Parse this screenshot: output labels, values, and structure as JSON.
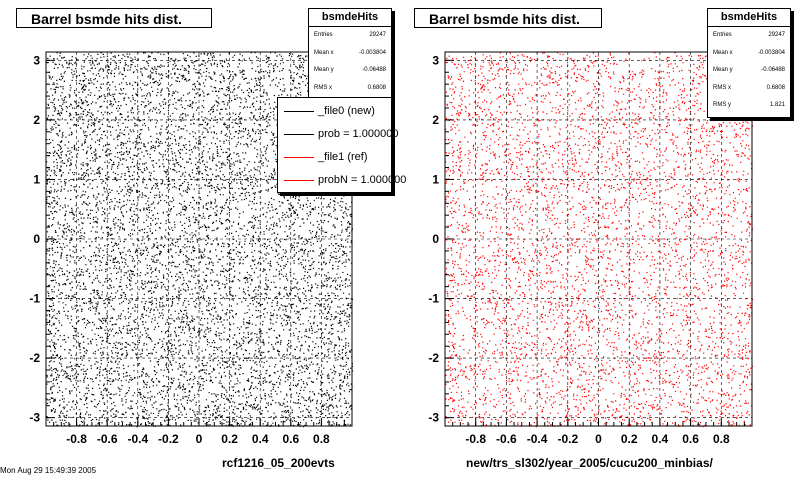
{
  "charts": [
    {
      "title": "Barrel bsmde hits dist.",
      "xlabel": "rcf1216_05_200evts",
      "marker_color": "#000000",
      "stats": {
        "name": "bsmdeHits",
        "rows": [
          {
            "label": "Entries",
            "value": "29247"
          },
          {
            "label": "Mean x",
            "value": "-0.003804"
          },
          {
            "label": "Mean y",
            "value": "-0.06488"
          },
          {
            "label": "RMS x",
            "value": "0.6808"
          }
        ]
      },
      "legend": [
        {
          "label": "_file0 (new)",
          "color": "#000000"
        },
        {
          "label": "prob = 1.000000",
          "color": "#000000"
        },
        {
          "label": "_file1 (ref)",
          "color": "#ff0000"
        },
        {
          "label": "probN = 1.000000",
          "color": "#ff0000"
        }
      ]
    },
    {
      "title": "Barrel bsmde hits dist.",
      "xlabel": "new/trs_sl302/year_2005/cucu200_minbias/",
      "marker_color": "#ff0000",
      "stats": {
        "name": "bsmdeHits",
        "rows": [
          {
            "label": "Entries",
            "value": "29247"
          },
          {
            "label": "Mean x",
            "value": "-0.003804"
          },
          {
            "label": "Mean y",
            "value": "-0.06488"
          },
          {
            "label": "RMS x",
            "value": "0.6808"
          },
          {
            "label": "RMS y",
            "value": "1.821"
          }
        ]
      }
    }
  ],
  "footer": "Mon Aug 29 15:49:39 2005",
  "chart_data": [
    {
      "type": "scatter",
      "title": "Barrel bsmde hits dist.",
      "xlabel": "rcf1216_05_200evts",
      "ylabel": "",
      "xlim": [
        -1.0,
        1.0
      ],
      "ylim": [
        -3.14,
        3.14
      ],
      "xticks": [
        -0.8,
        -0.6,
        -0.4,
        -0.2,
        0,
        0.2,
        0.4,
        0.6,
        0.8
      ],
      "yticks": [
        -3,
        -2,
        -1,
        0,
        1,
        2,
        3
      ],
      "grid": true,
      "distribution": "uniform",
      "series": [
        {
          "name": "bsmdeHits",
          "color": "#000000",
          "entries": 29247
        }
      ],
      "legend_position": "top-right"
    },
    {
      "type": "scatter",
      "title": "Barrel bsmde hits dist.",
      "xlabel": "new/trs_sl302/year_2005/cucu200_minbias/",
      "ylabel": "",
      "xlim": [
        -1.0,
        1.0
      ],
      "ylim": [
        -3.14,
        3.14
      ],
      "xticks": [
        -0.8,
        -0.6,
        -0.4,
        -0.2,
        0,
        0.2,
        0.4,
        0.6,
        0.8
      ],
      "yticks": [
        -3,
        -2,
        -1,
        0,
        1,
        2,
        3
      ],
      "grid": true,
      "distribution": "uniform",
      "series": [
        {
          "name": "bsmdeHits",
          "color": "#ff0000",
          "entries": 29247
        }
      ]
    }
  ]
}
